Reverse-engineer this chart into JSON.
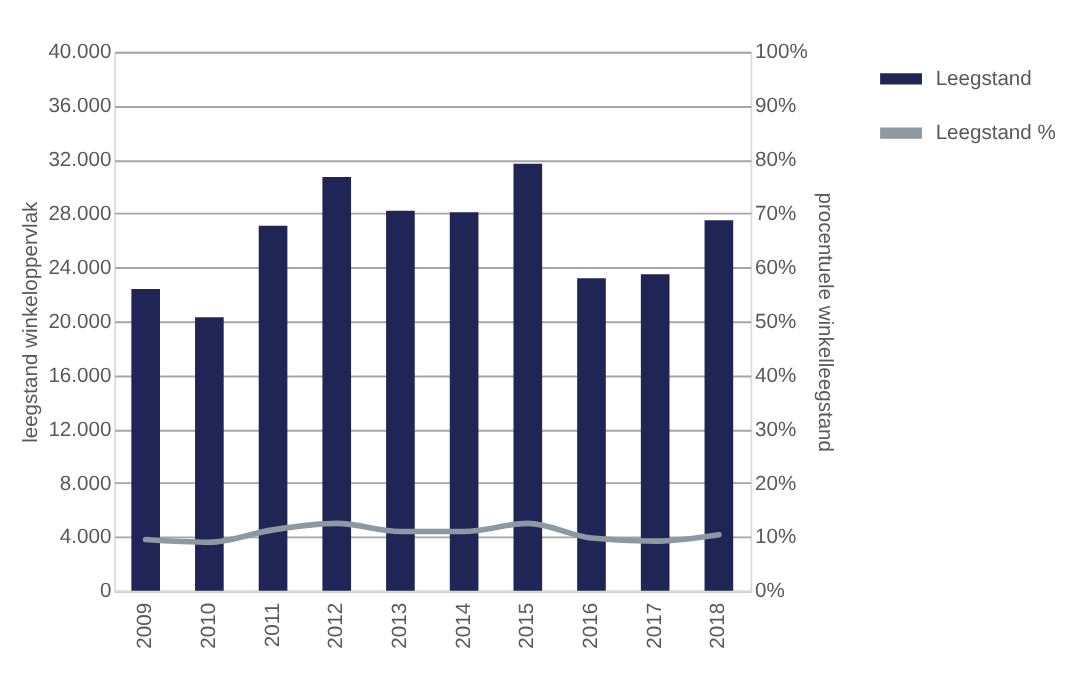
{
  "chart_data": {
    "type": "bar",
    "ylabel": "leegstand winkeloppervlak",
    "y2label": "procentuele winkelleegstand",
    "categories": [
      "2009",
      "2010",
      "2011",
      "2012",
      "2013",
      "2014",
      "2015",
      "2016",
      "2017",
      "2018"
    ],
    "series": [
      {
        "name": "Leegstand",
        "color": "#1f2656",
        "values": [
          22400,
          20300,
          27100,
          30700,
          28200,
          28100,
          31700,
          23200,
          23500,
          27500
        ]
      },
      {
        "name": "Leegstand %",
        "type": "line",
        "axis": "y2",
        "color": "#8c99a3",
        "line_style": "solid",
        "values": [
          9.5,
          9.0,
          11.3,
          12.5,
          11.0,
          11.0,
          12.5,
          9.8,
          9.2,
          10.4
        ]
      }
    ],
    "ylim": [
      0,
      40000
    ],
    "yticks": [
      {
        "value": 0,
        "label": "0"
      },
      {
        "value": 4000,
        "label": "4.000"
      },
      {
        "value": 8000,
        "label": "8.000"
      },
      {
        "value": 12000,
        "label": "12.000"
      },
      {
        "value": 16000,
        "label": "16.000"
      },
      {
        "value": 20000,
        "label": "20.000"
      },
      {
        "value": 24000,
        "label": "24.000"
      },
      {
        "value": 28000,
        "label": "28.000"
      },
      {
        "value": 32000,
        "label": "32.000"
      },
      {
        "value": 36000,
        "label": "36.000"
      },
      {
        "value": 40000,
        "label": "40.000"
      }
    ],
    "y2lim": [
      0,
      100
    ],
    "y2ticks": [
      {
        "value": 0,
        "label": "0%"
      },
      {
        "value": 10,
        "label": "10%"
      },
      {
        "value": 20,
        "label": "20%"
      },
      {
        "value": 30,
        "label": "30%"
      },
      {
        "value": 40,
        "label": "40%"
      },
      {
        "value": 50,
        "label": "50%"
      },
      {
        "value": 60,
        "label": "60%"
      },
      {
        "value": 70,
        "label": "70%"
      },
      {
        "value": 80,
        "label": "80%"
      },
      {
        "value": 90,
        "label": "90%"
      },
      {
        "value": 100,
        "label": "100%"
      }
    ],
    "grid": "y",
    "legend": "right"
  }
}
